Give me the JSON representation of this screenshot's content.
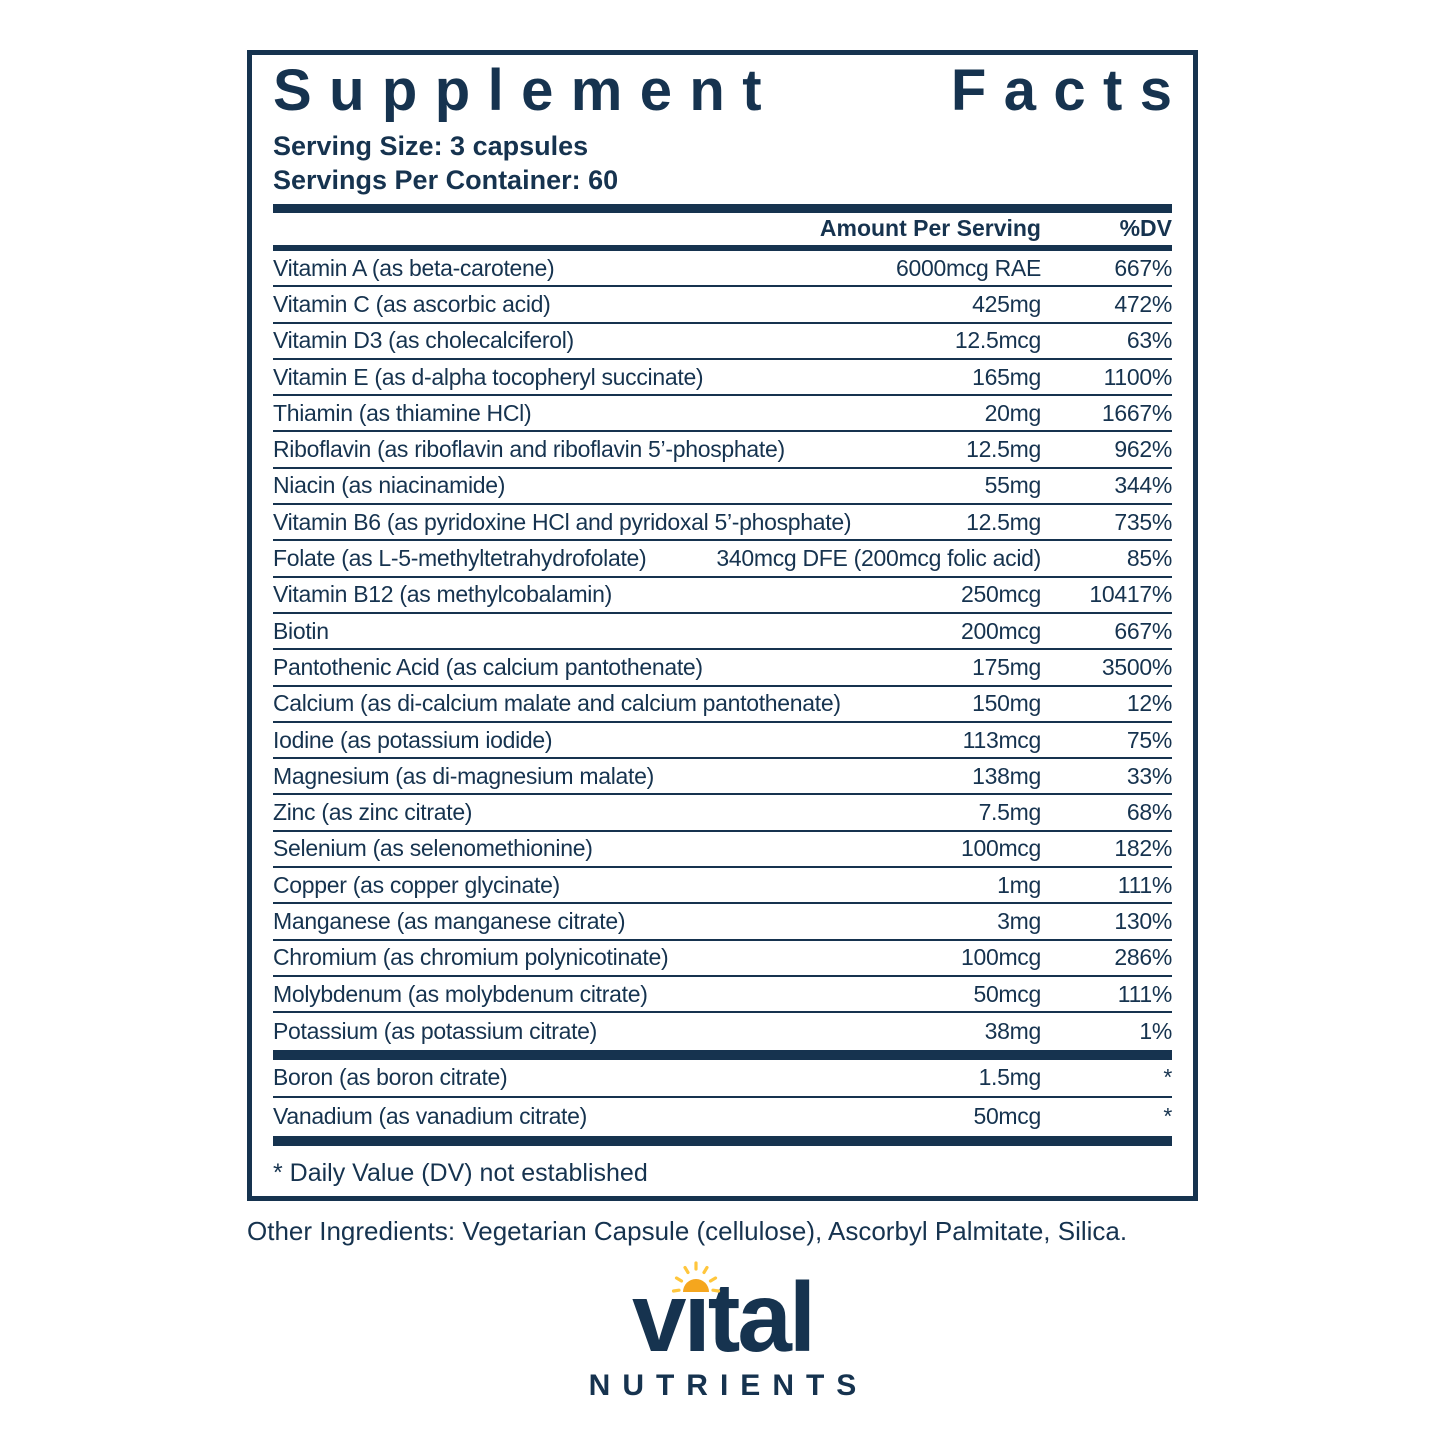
{
  "colors": {
    "navy": "#16334F",
    "sun_orange": "#F5A61E",
    "sun_ray": "#FFC63C",
    "background": "#FFFFFF"
  },
  "panel": {
    "title": "Supplement Facts",
    "title_words": [
      "Supplement",
      "Facts"
    ],
    "serving_size": "Serving Size: 3 capsules",
    "servings_per_container": "Servings Per Container: 60",
    "columns": {
      "amount": "Amount Per Serving",
      "dv": "%DV"
    },
    "rows": [
      {
        "name": "Vitamin A (as beta-carotene)",
        "amount": "6000mcg RAE",
        "dv": "667%"
      },
      {
        "name": "Vitamin C (as ascorbic acid)",
        "amount": "425mg",
        "dv": "472%"
      },
      {
        "name": "Vitamin D3 (as cholecalciferol)",
        "amount": "12.5mcg",
        "dv": "63%"
      },
      {
        "name": "Vitamin E (as d-alpha tocopheryl succinate)",
        "amount": "165mg",
        "dv": "1100%"
      },
      {
        "name": "Thiamin (as thiamine HCl)",
        "amount": "20mg",
        "dv": "1667%"
      },
      {
        "name": "Riboflavin (as riboflavin and riboflavin 5’-phosphate)",
        "amount": "12.5mg",
        "dv": "962%"
      },
      {
        "name": "Niacin (as niacinamide)",
        "amount": "55mg",
        "dv": "344%"
      },
      {
        "name": "Vitamin B6 (as pyridoxine HCl and pyridoxal 5’-phosphate)",
        "amount": "12.5mg",
        "dv": "735%"
      },
      {
        "name": "Folate (as L-5-methyltetrahydrofolate)",
        "amount": "340mcg DFE (200mcg folic acid)",
        "dv": "85%"
      },
      {
        "name": "Vitamin B12 (as methylcobalamin)",
        "amount": "250mcg",
        "dv": "10417%"
      },
      {
        "name": "Biotin",
        "amount": "200mcg",
        "dv": "667%"
      },
      {
        "name": "Pantothenic Acid (as calcium pantothenate)",
        "amount": "175mg",
        "dv": "3500%"
      },
      {
        "name": "Calcium (as di-calcium malate and calcium pantothenate)",
        "amount": "150mg",
        "dv": "12%"
      },
      {
        "name": "Iodine (as potassium iodide)",
        "amount": "113mcg",
        "dv": "75%"
      },
      {
        "name": "Magnesium (as di-magnesium malate)",
        "amount": "138mg",
        "dv": "33%"
      },
      {
        "name": "Zinc (as zinc citrate)",
        "amount": "7.5mg",
        "dv": "68%"
      },
      {
        "name": "Selenium (as selenomethionine)",
        "amount": "100mcg",
        "dv": "182%"
      },
      {
        "name": "Copper (as copper glycinate)",
        "amount": "1mg",
        "dv": "111%"
      },
      {
        "name": "Manganese (as manganese citrate)",
        "amount": "3mg",
        "dv": "130%"
      },
      {
        "name": "Chromium (as chromium polynicotinate)",
        "amount": "100mcg",
        "dv": "286%"
      },
      {
        "name": "Molybdenum (as molybdenum citrate)",
        "amount": "50mcg",
        "dv": "111%"
      },
      {
        "name": "Potassium (as potassium citrate)",
        "amount": "38mg",
        "dv": "1%"
      }
    ],
    "no_dv_rows": [
      {
        "name": "Boron (as boron citrate)",
        "amount": "1.5mg",
        "dv": "*"
      },
      {
        "name": "Vanadium (as vanadium citrate)",
        "amount": "50mcg",
        "dv": "*"
      }
    ],
    "footnote": "* Daily Value (DV) not established"
  },
  "other_ingredients": "Other Ingredients: Vegetarian Capsule (cellulose), Ascorbyl Palmitate, Silica.",
  "logo": {
    "brand": "vital",
    "brand_parts": [
      "v",
      "ı",
      "tal"
    ],
    "sub_brand": "NUTRIENTS",
    "sun_icon": "half-sun-with-rays"
  }
}
